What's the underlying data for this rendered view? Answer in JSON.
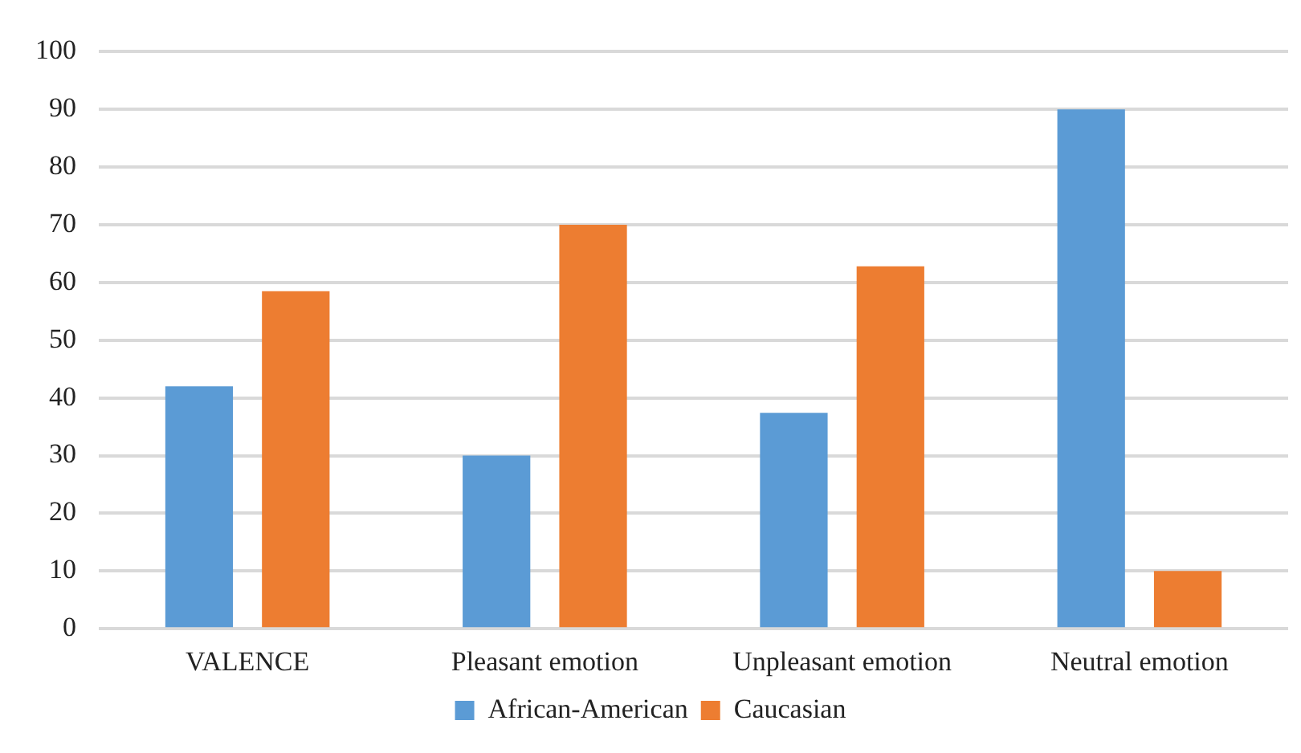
{
  "chart_data": {
    "type": "bar",
    "categories": [
      "VALENCE",
      "Pleasant emotion",
      "Unpleasant emotion",
      "Neutral emotion"
    ],
    "series": [
      {
        "name": "African-American",
        "color": "#5b9bd5",
        "values": [
          42,
          30,
          37.4,
          90
        ]
      },
      {
        "name": "Caucasian",
        "color": "#ed7d31",
        "values": [
          58.5,
          70,
          62.8,
          10
        ]
      }
    ],
    "ylim": [
      0,
      100
    ],
    "yticks": [
      0,
      10,
      20,
      30,
      40,
      50,
      60,
      70,
      80,
      90,
      100
    ],
    "grid": "y",
    "legend": "bottom"
  }
}
